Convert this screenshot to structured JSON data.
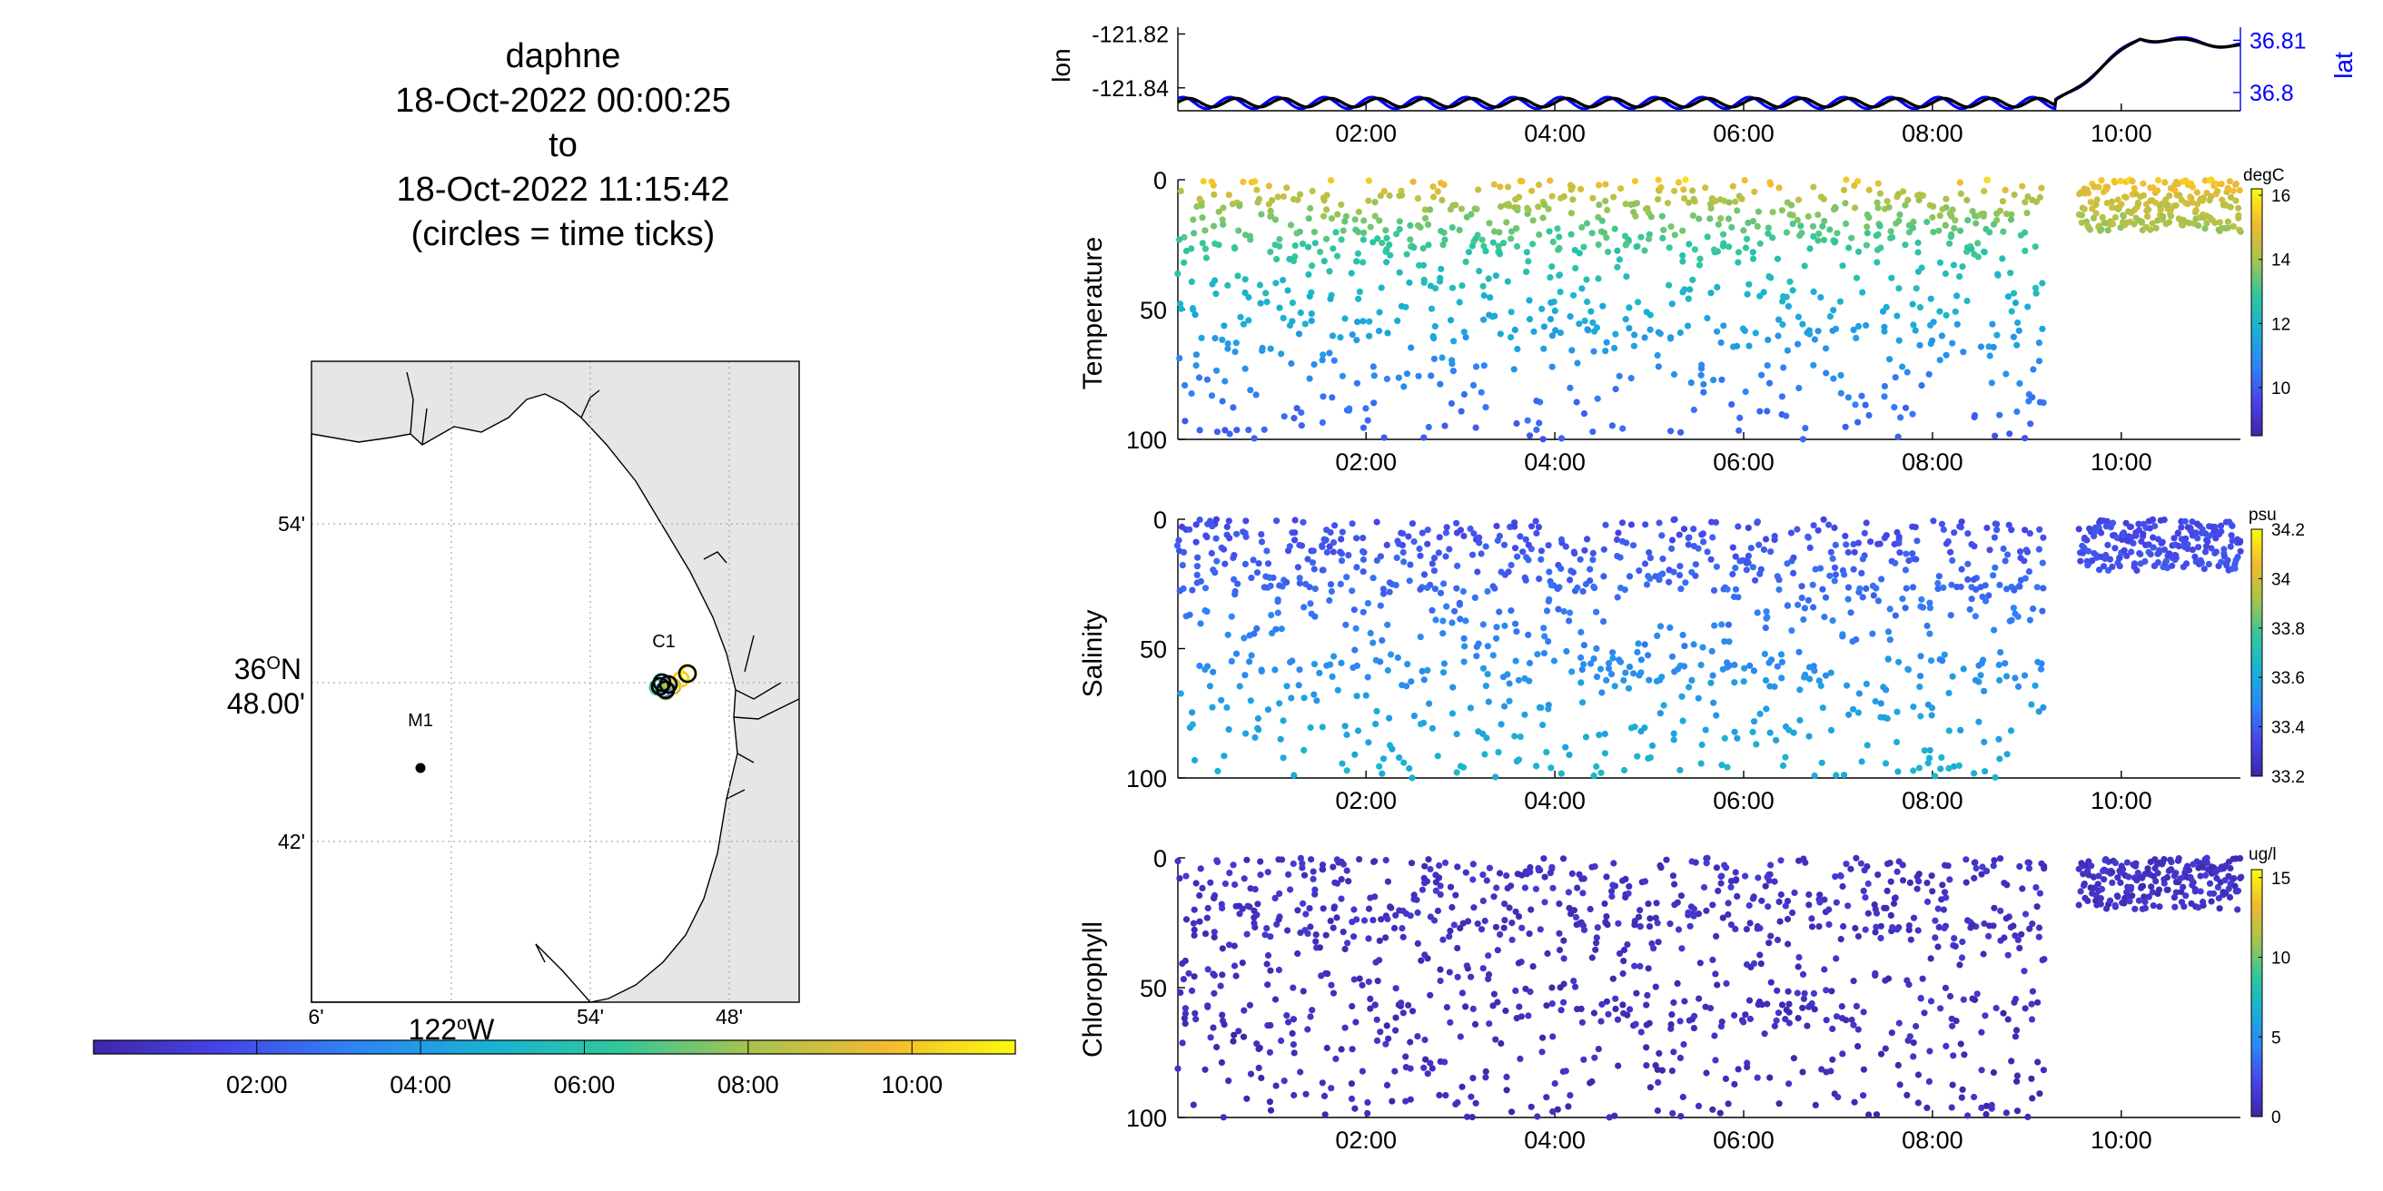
{
  "title": {
    "line1": "daphne",
    "line2": "18-Oct-2022 00:00:25",
    "line3": "to",
    "line4": "18-Oct-2022 11:15:42",
    "line5": "(circles = time ticks)"
  },
  "colors": {
    "parula": [
      "#3e26a8",
      "#4744e8",
      "#2f83f5",
      "#18b2d3",
      "#31c79c",
      "#a6c34e",
      "#f3ba2f",
      "#f9fb0e"
    ],
    "lat_axis": "#0000ff",
    "lon_line": "#000000",
    "land": "#e6e6e6",
    "sea": "#ffffff"
  },
  "map": {
    "lat_labels": [
      "54'",
      "36°N 48.00'",
      "42'"
    ],
    "lon_labels": [
      "6'",
      "54'",
      "48'"
    ],
    "lon_axis_label": "122°W",
    "stations": [
      {
        "name": "M1",
        "lon": -122.033,
        "lat": 36.747
      },
      {
        "name": "C1",
        "lon": -121.855,
        "lat": 36.798
      }
    ],
    "colorbar_ticks": [
      "02:00",
      "04:00",
      "06:00",
      "08:00",
      "10:00"
    ]
  },
  "chart_data": [
    {
      "type": "line",
      "panel": "position",
      "xlabel": "",
      "ylabel_left": "lon",
      "ylabel_right": "lat",
      "x_ticks": [
        "02:00",
        "04:00",
        "06:00",
        "08:00",
        "10:00"
      ],
      "xlim_hours": [
        0.007,
        11.262
      ],
      "left_axis": {
        "ticks": [
          "-121.82",
          "-121.84"
        ],
        "tick_values": [
          -121.82,
          -121.84
        ],
        "ylim": [
          -121.8485,
          -121.8175
        ]
      },
      "right_axis": {
        "ticks": [
          "36.81",
          "36.8"
        ],
        "tick_values": [
          36.81,
          36.8
        ],
        "ylim": [
          36.7965,
          36.8125
        ]
      },
      "series": [
        {
          "name": "lon",
          "description_points_hours": [
            0.0,
            9.3,
            10.2,
            11.26
          ],
          "values": [
            -121.8455,
            -121.8455,
            -121.8215,
            -121.8245
          ]
        },
        {
          "name": "lat",
          "description_points_hours": [
            0.0,
            9.3,
            10.2,
            11.26
          ],
          "values": [
            36.798,
            36.798,
            36.8105,
            36.809
          ]
        }
      ]
    },
    {
      "type": "scatter",
      "panel": "Temperature",
      "ylabel": "Temperature",
      "units": "degC",
      "ylim": [
        0,
        100
      ],
      "y_reversed": true,
      "y_ticks": [
        "0",
        "50",
        "100"
      ],
      "x_ticks": [
        "02:00",
        "04:00",
        "06:00",
        "08:00",
        "10:00"
      ],
      "clim": [
        8.5,
        16.2
      ],
      "colorbar_ticks": [
        "16",
        "14",
        "12",
        "10"
      ],
      "profile_summary": {
        "surface_value": 15.5,
        "deep_value": 10.0,
        "profiling_end_hours": 9.25,
        "surface_segment_hours": [
          9.55,
          11.26
        ],
        "surface_segment_depth_max": 20
      }
    },
    {
      "type": "scatter",
      "panel": "Salinity",
      "ylabel": "Salinity",
      "units": "psu",
      "ylim": [
        0,
        100
      ],
      "y_reversed": true,
      "y_ticks": [
        "0",
        "50",
        "100"
      ],
      "x_ticks": [
        "02:00",
        "04:00",
        "06:00",
        "08:00",
        "10:00"
      ],
      "clim": [
        33.2,
        34.2
      ],
      "colorbar_ticks": [
        "34.2",
        "34",
        "33.8",
        "33.6",
        "33.4",
        "33.2"
      ],
      "profile_summary": {
        "surface_value": 33.35,
        "deep_value": 33.65,
        "profiling_end_hours": 9.25,
        "surface_segment_hours": [
          9.55,
          11.26
        ],
        "surface_segment_depth_max": 20
      }
    },
    {
      "type": "scatter",
      "panel": "Chlorophyll",
      "ylabel": "Chlorophyll",
      "units": "ug/l",
      "ylim": [
        0,
        100
      ],
      "y_reversed": true,
      "y_ticks": [
        "0",
        "50",
        "100"
      ],
      "x_ticks": [
        "02:00",
        "04:00",
        "06:00",
        "08:00",
        "10:00"
      ],
      "clim": [
        0,
        15.5
      ],
      "colorbar_ticks": [
        "15",
        "10",
        "5",
        "0"
      ],
      "profile_summary": {
        "surface_value": 1.0,
        "deep_value": 0.5,
        "profiling_end_hours": 9.25,
        "surface_segment_hours": [
          9.55,
          11.26
        ],
        "surface_segment_depth_max": 20
      }
    }
  ]
}
